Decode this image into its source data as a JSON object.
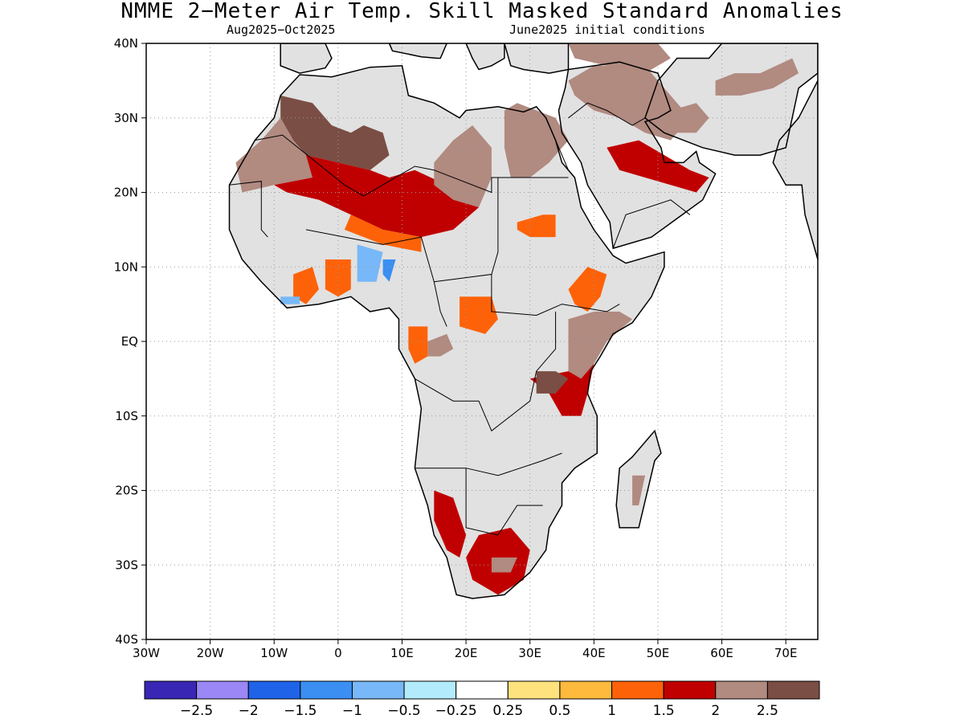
{
  "title": "NMME 2−Meter Air Temp. Skill Masked Standard Anomalies",
  "subtitle_left": "Aug2025−Oct2025",
  "subtitle_right": "June2025 initial conditions",
  "map": {
    "lon_range": [
      -30,
      75
    ],
    "lat_range": [
      -40,
      40
    ],
    "lat_ticks": [
      {
        "value": 40,
        "label": "40N"
      },
      {
        "value": 30,
        "label": "30N"
      },
      {
        "value": 20,
        "label": "20N"
      },
      {
        "value": 10,
        "label": "10N"
      },
      {
        "value": 0,
        "label": "EQ"
      },
      {
        "value": -10,
        "label": "10S"
      },
      {
        "value": -20,
        "label": "20S"
      },
      {
        "value": -30,
        "label": "30S"
      },
      {
        "value": -40,
        "label": "40S"
      }
    ],
    "lon_ticks": [
      {
        "value": -30,
        "label": "30W"
      },
      {
        "value": -20,
        "label": "20W"
      },
      {
        "value": -10,
        "label": "10W"
      },
      {
        "value": 0,
        "label": "0"
      },
      {
        "value": 10,
        "label": "10E"
      },
      {
        "value": 20,
        "label": "20E"
      },
      {
        "value": 30,
        "label": "30E"
      },
      {
        "value": 40,
        "label": "40E"
      },
      {
        "value": 50,
        "label": "50E"
      },
      {
        "value": 60,
        "label": "60E"
      },
      {
        "value": 70,
        "label": "70E"
      }
    ],
    "land_color": "#e1e1e1",
    "coast_color": "#000000",
    "anomaly_regions": [
      {
        "level": 2.5,
        "polygon": [
          [
            -9,
            33
          ],
          [
            -4,
            32
          ],
          [
            -1,
            29
          ],
          [
            2,
            28
          ],
          [
            4,
            29
          ],
          [
            7,
            28
          ],
          [
            8,
            25
          ],
          [
            5,
            23
          ],
          [
            0,
            24
          ],
          [
            -5,
            25
          ],
          [
            -7,
            27
          ],
          [
            -9,
            30
          ]
        ]
      },
      {
        "level": 2,
        "polygon": [
          [
            -16,
            24
          ],
          [
            -12,
            27
          ],
          [
            -9,
            30
          ],
          [
            -7,
            27
          ],
          [
            -5,
            25
          ],
          [
            0,
            24
          ],
          [
            -4,
            22
          ],
          [
            -10,
            21
          ],
          [
            -15,
            20
          ]
        ]
      },
      {
        "level": 1.5,
        "polygon": [
          [
            -5,
            25
          ],
          [
            0,
            24
          ],
          [
            5,
            23
          ],
          [
            8,
            22
          ],
          [
            12,
            23
          ],
          [
            17,
            21
          ],
          [
            22,
            18
          ],
          [
            18,
            15
          ],
          [
            13,
            14
          ],
          [
            7,
            15
          ],
          [
            2,
            17
          ],
          [
            -3,
            19
          ],
          [
            -8,
            20
          ],
          [
            -10,
            21
          ],
          [
            -4,
            22
          ]
        ]
      },
      {
        "level": 1,
        "polygon": [
          [
            2,
            17
          ],
          [
            7,
            15
          ],
          [
            13,
            14
          ],
          [
            13,
            12
          ],
          [
            7,
            13
          ],
          [
            1,
            15
          ]
        ]
      },
      {
        "level": 2,
        "polygon": [
          [
            15,
            24
          ],
          [
            18,
            27
          ],
          [
            21,
            29
          ],
          [
            24,
            26
          ],
          [
            24,
            22
          ],
          [
            22,
            18
          ],
          [
            18,
            19
          ],
          [
            15,
            21
          ]
        ]
      },
      {
        "level": 2,
        "polygon": [
          [
            26,
            31
          ],
          [
            28,
            32
          ],
          [
            34,
            30
          ],
          [
            36,
            27
          ],
          [
            33,
            24
          ],
          [
            30,
            22
          ],
          [
            27,
            22
          ],
          [
            26,
            26
          ]
        ]
      },
      {
        "level": 2,
        "polygon": [
          [
            36,
            35
          ],
          [
            40,
            37
          ],
          [
            48,
            37
          ],
          [
            51,
            34
          ],
          [
            55,
            30
          ],
          [
            52,
            27
          ],
          [
            48,
            28
          ],
          [
            44,
            30
          ],
          [
            40,
            31
          ],
          [
            37,
            33
          ]
        ]
      },
      {
        "level": 1.5,
        "polygon": [
          [
            42,
            26
          ],
          [
            47,
            27
          ],
          [
            51,
            25
          ],
          [
            55,
            23
          ],
          [
            58,
            22
          ],
          [
            56,
            20
          ],
          [
            52,
            21
          ],
          [
            48,
            22
          ],
          [
            44,
            23
          ]
        ]
      },
      {
        "level": 2,
        "polygon": [
          [
            36,
            40
          ],
          [
            44,
            40
          ],
          [
            50,
            40
          ],
          [
            52,
            38
          ],
          [
            48,
            36
          ],
          [
            42,
            37
          ],
          [
            37,
            38
          ]
        ]
      },
      {
        "level": 2,
        "polygon": [
          [
            59,
            35
          ],
          [
            62,
            36
          ],
          [
            66,
            36
          ],
          [
            71,
            38
          ],
          [
            72,
            36
          ],
          [
            68,
            34
          ],
          [
            63,
            33
          ],
          [
            59,
            33
          ]
        ]
      },
      {
        "level": 2,
        "polygon": [
          [
            52,
            31
          ],
          [
            56,
            32
          ],
          [
            58,
            30
          ],
          [
            56,
            28
          ],
          [
            53,
            28
          ]
        ]
      },
      {
        "level": 1,
        "polygon": [
          [
            28,
            16
          ],
          [
            32,
            17
          ],
          [
            34,
            17
          ],
          [
            34,
            14
          ],
          [
            30,
            14
          ],
          [
            28,
            15
          ]
        ]
      },
      {
        "level": 1,
        "polygon": [
          [
            39,
            10
          ],
          [
            42,
            9
          ],
          [
            41,
            6
          ],
          [
            39,
            4
          ],
          [
            37,
            5
          ],
          [
            36,
            7
          ]
        ]
      },
      {
        "level": 2,
        "polygon": [
          [
            36,
            3
          ],
          [
            40,
            4
          ],
          [
            44,
            4
          ],
          [
            46,
            3
          ],
          [
            42,
            0
          ],
          [
            40,
            -3
          ],
          [
            38,
            -5
          ],
          [
            36,
            -4
          ]
        ]
      },
      {
        "level": 1.5,
        "polygon": [
          [
            36,
            -4
          ],
          [
            38,
            -5
          ],
          [
            40,
            -3
          ],
          [
            39,
            -7
          ],
          [
            38,
            -10
          ],
          [
            35,
            -10
          ],
          [
            33,
            -7
          ],
          [
            30,
            -5
          ]
        ]
      },
      {
        "level": 2.5,
        "polygon": [
          [
            31,
            -4
          ],
          [
            34,
            -4
          ],
          [
            36,
            -5
          ],
          [
            34,
            -7
          ],
          [
            31,
            -7
          ]
        ]
      },
      {
        "level": 1,
        "polygon": [
          [
            19,
            6
          ],
          [
            24,
            6
          ],
          [
            25,
            3
          ],
          [
            23,
            1
          ],
          [
            19,
            2
          ]
        ]
      },
      {
        "level": 2,
        "polygon": [
          [
            14,
            0
          ],
          [
            17,
            1
          ],
          [
            18,
            -1
          ],
          [
            16,
            -2
          ],
          [
            14,
            -2
          ]
        ]
      },
      {
        "level": 1,
        "polygon": [
          [
            11,
            2
          ],
          [
            14,
            2
          ],
          [
            14,
            -2
          ],
          [
            12,
            -3
          ],
          [
            11,
            -1
          ]
        ]
      },
      {
        "level": 1,
        "polygon": [
          [
            -7,
            9
          ],
          [
            -4,
            10
          ],
          [
            -3,
            7
          ],
          [
            -5,
            5
          ],
          [
            -7,
            6
          ]
        ]
      },
      {
        "level": 1,
        "polygon": [
          [
            -2,
            11
          ],
          [
            2,
            11
          ],
          [
            2,
            7
          ],
          [
            0,
            6
          ],
          [
            -2,
            7
          ]
        ]
      },
      {
        "level": -0.25,
        "polygon": [
          [
            3,
            13
          ],
          [
            7,
            12
          ],
          [
            6,
            8
          ],
          [
            3,
            8
          ]
        ]
      },
      {
        "level": -0.5,
        "polygon": [
          [
            7,
            11
          ],
          [
            9,
            11
          ],
          [
            8,
            8
          ],
          [
            7,
            9
          ]
        ]
      },
      {
        "level": -0.25,
        "polygon": [
          [
            -9,
            6
          ],
          [
            -6,
            6
          ],
          [
            -6,
            5
          ],
          [
            -9,
            5
          ]
        ]
      },
      {
        "level": 1.5,
        "polygon": [
          [
            15,
            -20
          ],
          [
            18,
            -21
          ],
          [
            20,
            -26
          ],
          [
            19,
            -29
          ],
          [
            17,
            -28
          ],
          [
            15,
            -24
          ]
        ]
      },
      {
        "level": 1.5,
        "polygon": [
          [
            22,
            -26
          ],
          [
            27,
            -25
          ],
          [
            30,
            -28
          ],
          [
            29,
            -32
          ],
          [
            25,
            -34
          ],
          [
            21,
            -32
          ],
          [
            20,
            -29
          ]
        ]
      },
      {
        "level": 2,
        "polygon": [
          [
            24,
            -29
          ],
          [
            28,
            -29
          ],
          [
            27,
            -31
          ],
          [
            24,
            -31
          ]
        ]
      },
      {
        "level": 2,
        "polygon": [
          [
            46,
            -18
          ],
          [
            48,
            -18
          ],
          [
            47,
            -22
          ],
          [
            46,
            -22
          ]
        ]
      }
    ]
  },
  "colorbar": {
    "colors": [
      "#3a26b4",
      "#9b87f5",
      "#1f64e8",
      "#3b8ff2",
      "#78b8f8",
      "#b2ecfc",
      "#ffffff",
      "#fde27e",
      "#fdba3c",
      "#fd6209",
      "#c00000",
      "#b18a80",
      "#7a4e44"
    ],
    "labels": [
      "−2.5",
      "−2",
      "−1.5",
      "−1",
      "−0.5",
      "−0.25",
      "0.25",
      "0.5",
      "1",
      "1.5",
      "2",
      "2.5"
    ]
  }
}
